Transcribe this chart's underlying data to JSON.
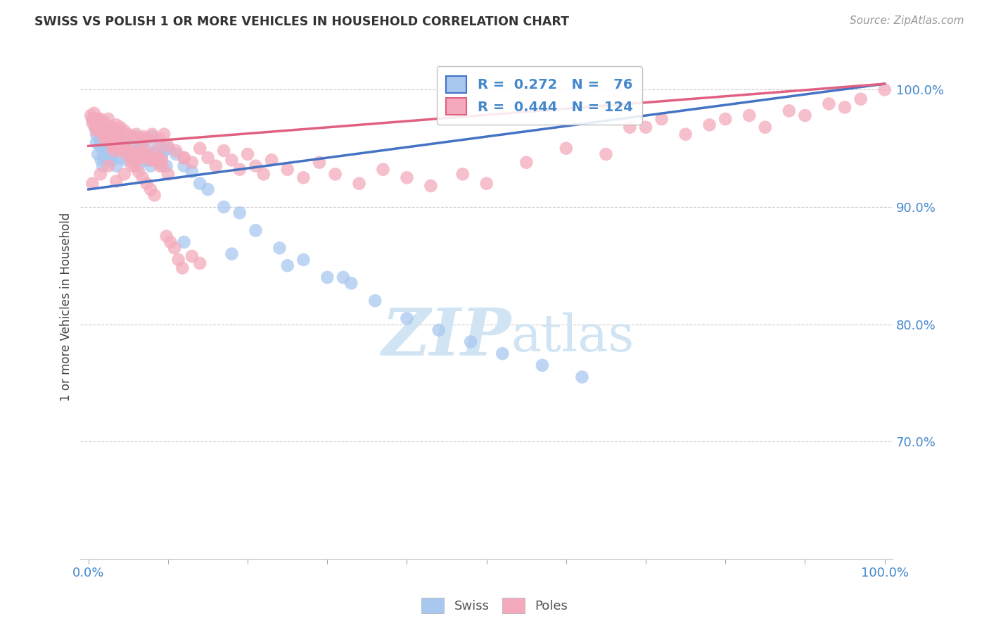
{
  "title": "SWISS VS POLISH 1 OR MORE VEHICLES IN HOUSEHOLD CORRELATION CHART",
  "source": "Source: ZipAtlas.com",
  "ylabel": "1 or more Vehicles in Household",
  "swiss_R": 0.272,
  "swiss_N": 76,
  "poles_R": 0.444,
  "poles_N": 124,
  "swiss_color": "#A8C8F0",
  "poles_color": "#F4AABC",
  "swiss_line_color": "#4472C4",
  "poles_line_color": "#E06080",
  "background_color": "#FFFFFF",
  "watermark_color": "#D0E4F4",
  "legend_swiss_label": "Swiss",
  "legend_poles_label": "Poles",
  "xlim": [
    -0.01,
    1.01
  ],
  "ylim": [
    0.6,
    1.03
  ],
  "yticks": [
    0.7,
    0.8,
    0.9,
    1.0
  ],
  "ytick_labels": [
    "70.0%",
    "80.0%",
    "90.0%",
    "100.0%"
  ],
  "xtick_labels": [
    "0.0%",
    "",
    "",
    "",
    "",
    "",
    "",
    "",
    "",
    "",
    "100.0%"
  ],
  "swiss_line_x0": 0.0,
  "swiss_line_y0": 0.915,
  "swiss_line_x1": 1.0,
  "swiss_line_y1": 1.005,
  "poles_line_x0": 0.0,
  "poles_line_y0": 0.952,
  "poles_line_x1": 1.0,
  "poles_line_y1": 1.005,
  "swiss_x": [
    0.005,
    0.008,
    0.01,
    0.01,
    0.012,
    0.012,
    0.014,
    0.015,
    0.015,
    0.016,
    0.017,
    0.018,
    0.018,
    0.02,
    0.02,
    0.022,
    0.023,
    0.025,
    0.025,
    0.027,
    0.028,
    0.03,
    0.03,
    0.032,
    0.035,
    0.035,
    0.038,
    0.04,
    0.04,
    0.042,
    0.045,
    0.047,
    0.05,
    0.052,
    0.055,
    0.057,
    0.06,
    0.062,
    0.065,
    0.068,
    0.07,
    0.072,
    0.075,
    0.078,
    0.08,
    0.082,
    0.085,
    0.088,
    0.09,
    0.092,
    0.095,
    0.098,
    0.1,
    0.11,
    0.12,
    0.13,
    0.14,
    0.15,
    0.17,
    0.19,
    0.21,
    0.24,
    0.27,
    0.3,
    0.33,
    0.36,
    0.4,
    0.44,
    0.48,
    0.52,
    0.57,
    0.62,
    0.12,
    0.18,
    0.25,
    0.32
  ],
  "swiss_y": [
    0.975,
    0.968,
    0.962,
    0.955,
    0.97,
    0.945,
    0.958,
    0.952,
    0.965,
    0.94,
    0.955,
    0.948,
    0.935,
    0.96,
    0.942,
    0.958,
    0.952,
    0.965,
    0.94,
    0.958,
    0.945,
    0.962,
    0.94,
    0.955,
    0.96,
    0.935,
    0.952,
    0.965,
    0.942,
    0.958,
    0.955,
    0.94,
    0.958,
    0.945,
    0.952,
    0.94,
    0.96,
    0.935,
    0.955,
    0.945,
    0.958,
    0.94,
    0.948,
    0.935,
    0.96,
    0.94,
    0.945,
    0.952,
    0.938,
    0.942,
    0.948,
    0.935,
    0.95,
    0.945,
    0.935,
    0.93,
    0.92,
    0.915,
    0.9,
    0.895,
    0.88,
    0.865,
    0.855,
    0.84,
    0.835,
    0.82,
    0.805,
    0.795,
    0.785,
    0.775,
    0.765,
    0.755,
    0.87,
    0.86,
    0.85,
    0.84
  ],
  "poles_x": [
    0.003,
    0.005,
    0.007,
    0.008,
    0.009,
    0.01,
    0.01,
    0.012,
    0.013,
    0.014,
    0.015,
    0.016,
    0.018,
    0.02,
    0.02,
    0.022,
    0.023,
    0.025,
    0.027,
    0.028,
    0.03,
    0.03,
    0.032,
    0.035,
    0.035,
    0.038,
    0.04,
    0.04,
    0.042,
    0.045,
    0.047,
    0.05,
    0.052,
    0.055,
    0.057,
    0.06,
    0.062,
    0.065,
    0.068,
    0.07,
    0.072,
    0.075,
    0.078,
    0.08,
    0.085,
    0.088,
    0.09,
    0.092,
    0.095,
    0.1,
    0.11,
    0.12,
    0.13,
    0.14,
    0.15,
    0.16,
    0.17,
    0.18,
    0.19,
    0.2,
    0.21,
    0.22,
    0.23,
    0.25,
    0.27,
    0.29,
    0.31,
    0.34,
    0.37,
    0.4,
    0.43,
    0.47,
    0.5,
    0.55,
    0.6,
    0.65,
    0.7,
    0.75,
    0.8,
    0.85,
    0.9,
    0.95,
    1.0,
    0.68,
    0.72,
    0.78,
    0.83,
    0.88,
    0.93,
    0.97,
    0.08,
    0.09,
    0.1,
    0.12,
    0.07,
    0.065,
    0.055,
    0.045,
    0.035,
    0.025,
    0.015,
    0.005,
    0.022,
    0.028,
    0.032,
    0.038,
    0.042,
    0.048,
    0.053,
    0.058,
    0.063,
    0.068,
    0.073,
    0.078,
    0.083,
    0.088,
    0.093,
    0.098,
    0.103,
    0.108,
    0.113,
    0.118,
    0.13,
    0.14
  ],
  "poles_y": [
    0.978,
    0.972,
    0.98,
    0.975,
    0.968,
    0.972,
    0.965,
    0.975,
    0.97,
    0.965,
    0.975,
    0.968,
    0.965,
    0.972,
    0.958,
    0.968,
    0.962,
    0.975,
    0.965,
    0.958,
    0.968,
    0.952,
    0.965,
    0.97,
    0.952,
    0.962,
    0.968,
    0.948,
    0.96,
    0.965,
    0.95,
    0.962,
    0.948,
    0.96,
    0.945,
    0.962,
    0.948,
    0.958,
    0.942,
    0.96,
    0.945,
    0.958,
    0.94,
    0.962,
    0.948,
    0.942,
    0.958,
    0.94,
    0.962,
    0.952,
    0.948,
    0.942,
    0.938,
    0.95,
    0.942,
    0.935,
    0.948,
    0.94,
    0.932,
    0.945,
    0.935,
    0.928,
    0.94,
    0.932,
    0.925,
    0.938,
    0.928,
    0.92,
    0.932,
    0.925,
    0.918,
    0.928,
    0.92,
    0.938,
    0.95,
    0.945,
    0.968,
    0.962,
    0.975,
    0.968,
    0.978,
    0.985,
    1.0,
    0.968,
    0.975,
    0.97,
    0.978,
    0.982,
    0.988,
    0.992,
    0.94,
    0.935,
    0.928,
    0.942,
    0.948,
    0.942,
    0.935,
    0.928,
    0.922,
    0.935,
    0.928,
    0.92,
    0.96,
    0.955,
    0.948,
    0.958,
    0.952,
    0.945,
    0.94,
    0.935,
    0.93,
    0.925,
    0.92,
    0.915,
    0.91,
    0.94,
    0.935,
    0.875,
    0.87,
    0.865,
    0.855,
    0.848,
    0.858,
    0.852
  ]
}
